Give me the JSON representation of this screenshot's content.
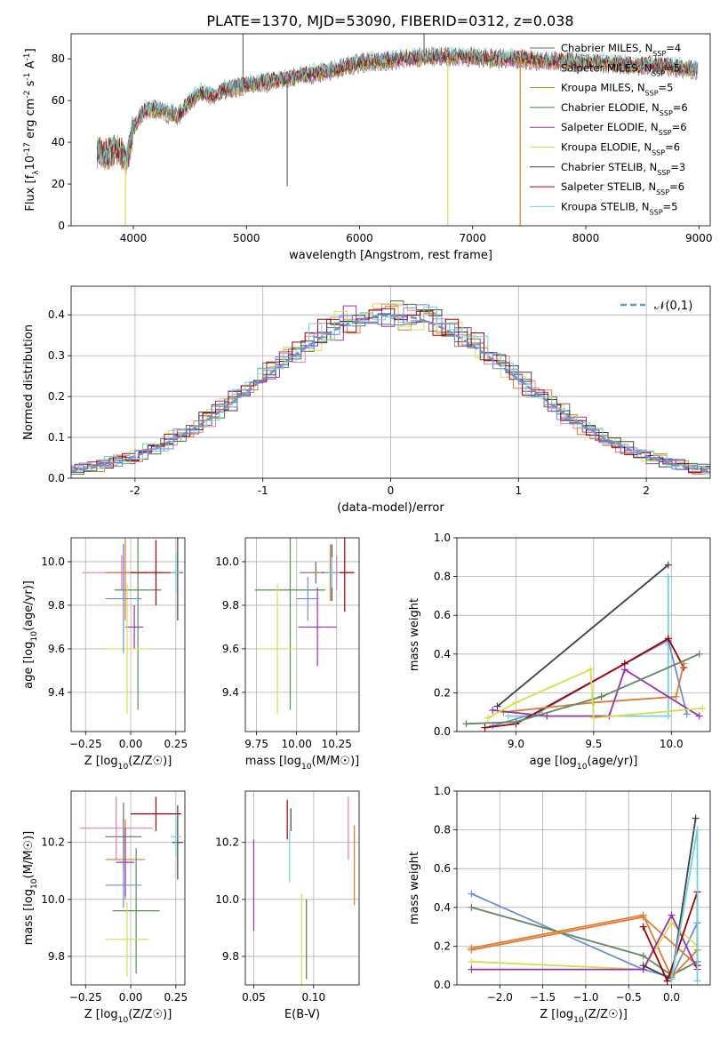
{
  "figure_title": "PLATE=1370, MJD=53090, FIBERID=0312, z=0.038",
  "colors": {
    "Chabrier MILES": "#6a6a6a",
    "Salpeter MILES": "#e879b6",
    "Kroupa MILES": "#b8860b",
    "Chabrier ELODIE": "#3f7f3f",
    "Salpeter ELODIE": "#9b30b0",
    "Kroupa ELODIE": "#d4e04a",
    "Chabrier STELIB": "#404040",
    "Salpeter STELIB": "#a00000",
    "Kroupa STELIB": "#6fd3dd",
    "cornflower": "#6d8fd8",
    "orange": "#e07b30",
    "sage": "#5c8a5c"
  },
  "chart_data": [
    {
      "id": "spectrum",
      "type": "line",
      "xlabel": "wavelength [Angstrom, rest frame]",
      "ylabel": "Flux [f_λ10^-17 erg cm^-2 s^-1 A^-1]",
      "xlim": [
        3450,
        9100
      ],
      "ylim": [
        0,
        92
      ],
      "xticks": [
        4000,
        5000,
        6000,
        7000,
        8000,
        9000
      ],
      "yticks": [
        0,
        20,
        40,
        60,
        80
      ],
      "grid": false,
      "legend_position": "top-right",
      "legend": [
        {
          "label": "Chabrier MILES, N",
          "sub": "SSP",
          "suffix": "=4",
          "color": "#6a6a6a"
        },
        {
          "label": "Salpeter MILES, N",
          "sub": "SSP",
          "suffix": "=5",
          "color": "#e879b6"
        },
        {
          "label": "Kroupa MILES, N",
          "sub": "SSP",
          "suffix": "=5",
          "color": "#b8860b"
        },
        {
          "label": "Chabrier ELODIE, N",
          "sub": "SSP",
          "suffix": "=6",
          "color": "#3f7f3f"
        },
        {
          "label": "Salpeter ELODIE, N",
          "sub": "SSP",
          "suffix": "=6",
          "color": "#9b30b0"
        },
        {
          "label": "Kroupa ELODIE, N",
          "sub": "SSP",
          "suffix": "=6",
          "color": "#d4e04a"
        },
        {
          "label": "Chabrier STELIB, N",
          "sub": "SSP",
          "suffix": "=3",
          "color": "#404040"
        },
        {
          "label": "Salpeter STELIB, N",
          "sub": "SSP",
          "suffix": "=6",
          "color": "#a00000"
        },
        {
          "label": "Kroupa STELIB, N",
          "sub": "SSP",
          "suffix": "=5",
          "color": "#6fd3dd"
        }
      ],
      "continuum": {
        "x": [
          3680,
          3750,
          3850,
          3950,
          4000,
          4100,
          4200,
          4300,
          4400,
          4500,
          4600,
          4700,
          4800,
          4900,
          5000,
          5200,
          5400,
          5600,
          5800,
          6000,
          6200,
          6400,
          6600,
          6800,
          7000,
          7200,
          7400,
          7600,
          7800,
          8000,
          8200,
          8400,
          8600,
          8800,
          8980
        ],
        "y": [
          36,
          34,
          37,
          32,
          47,
          55,
          56,
          54,
          53,
          60,
          64,
          62,
          65,
          66,
          68,
          69,
          71,
          73,
          75,
          78,
          79,
          80,
          81,
          81,
          81,
          80,
          80,
          79,
          79,
          78,
          78,
          77,
          77,
          76,
          75
        ]
      },
      "features": [
        {
          "x": 3930,
          "y": 0,
          "color": "#d4e04a"
        },
        {
          "x": 4970,
          "y": 92,
          "color": "#6a6a6a"
        },
        {
          "x": 5360,
          "y": 19,
          "color": "#6a6a6a"
        },
        {
          "x": 6570,
          "y": 92,
          "color": "#6a6a6a"
        },
        {
          "x": 6780,
          "y": 0,
          "color": "#d4e04a"
        },
        {
          "x": 7420,
          "y": 0,
          "color": "#e07b30"
        }
      ]
    },
    {
      "id": "residuals",
      "type": "histogram",
      "xlabel": "(data-model)/error",
      "ylabel": "Normed distribution",
      "xlim": [
        -2.5,
        2.5
      ],
      "ylim": [
        0,
        0.47
      ],
      "xticks": [
        -2,
        -1,
        0,
        1,
        2
      ],
      "yticks": [
        0.0,
        0.1,
        0.2,
        0.3,
        0.4
      ],
      "grid": true,
      "legend_position": "top-right",
      "legend": [
        {
          "label": "𝒩(0,1)",
          "color": "#6d8fd8"
        }
      ],
      "gaussian": {
        "mean": 0,
        "sigma": 1
      },
      "bin_width": 0.1
    },
    {
      "id": "age-vs-Z",
      "type": "errorbar",
      "xlabel": "Z [log10(Z/Z☉)]",
      "ylabel": "age [log10(age/yr)]",
      "xlim": [
        -0.33,
        0.3
      ],
      "ylim": [
        9.22,
        10.11
      ],
      "xticks": [
        -0.25,
        0.0,
        0.25
      ],
      "xticklabels": [
        "−0.25",
        "0.00",
        "0.25"
      ],
      "yticks": [
        9.4,
        9.6,
        9.8,
        10.0
      ],
      "grid": true,
      "points": [
        {
          "x": -0.04,
          "y": 9.95,
          "xerr": 0.1,
          "yerr": 0.13,
          "color": "#6a6a6a"
        },
        {
          "x": -0.05,
          "y": 9.95,
          "xerr": 0.22,
          "yerr": 0.08,
          "color": "#e879b6"
        },
        {
          "x": -0.03,
          "y": 9.95,
          "xerr": 0.11,
          "yerr": 0.22,
          "color": "#e07b30"
        },
        {
          "x": 0.04,
          "y": 9.87,
          "xerr": 0.13,
          "yerr": 0.55,
          "color": "#5c8a5c"
        },
        {
          "x": 0.02,
          "y": 9.7,
          "xerr": 0.05,
          "yerr": 0.1,
          "color": "#9b30b0"
        },
        {
          "x": -0.02,
          "y": 9.6,
          "xerr": 0.12,
          "yerr": 0.3,
          "color": "#d4e04a"
        },
        {
          "x": 0.26,
          "y": 9.95,
          "xerr": 0.03,
          "yerr": 0.22,
          "color": "#404040"
        },
        {
          "x": 0.14,
          "y": 9.95,
          "xerr": 0.14,
          "yerr": 0.15,
          "color": "#a00000"
        },
        {
          "x": 0.25,
          "y": 9.95,
          "xerr": 0.03,
          "yerr": 0.09,
          "color": "#6fd3dd"
        },
        {
          "x": -0.04,
          "y": 9.83,
          "xerr": 0.1,
          "yerr": 0.25,
          "color": "#6d8fd8"
        }
      ]
    },
    {
      "id": "age-vs-mass",
      "type": "errorbar",
      "xlabel": "mass [log10(M/M☉)]",
      "ylabel": "",
      "xlim": [
        9.68,
        10.39
      ],
      "ylim": [
        9.22,
        10.11
      ],
      "xticks": [
        9.75,
        10.0,
        10.25
      ],
      "xticklabels": [
        "9.75",
        "10.00",
        "10.25"
      ],
      "yticks": [
        9.4,
        9.6,
        9.8,
        10.0
      ],
      "grid": true,
      "points": [
        {
          "x": 9.96,
          "y": 9.87,
          "xerr": 0.22,
          "yerr": 0.55,
          "color": "#5c8a5c"
        },
        {
          "x": 9.88,
          "y": 9.6,
          "xerr": 0.13,
          "yerr": 0.3,
          "color": "#d4e04a"
        },
        {
          "x": 10.13,
          "y": 9.7,
          "xerr": 0.12,
          "yerr": 0.18,
          "color": "#9b30b0"
        },
        {
          "x": 10.12,
          "y": 9.95,
          "xerr": 0.1,
          "yerr": 0.05,
          "color": "#6a6a6a"
        },
        {
          "x": 10.25,
          "y": 9.95,
          "xerr": 0.11,
          "yerr": 0.08,
          "color": "#e879b6"
        },
        {
          "x": 10.21,
          "y": 9.95,
          "xerr": 0.14,
          "yerr": 0.13,
          "color": "#e07b30"
        },
        {
          "x": 10.22,
          "y": 9.95,
          "xerr": 0.06,
          "yerr": 0.13,
          "color": "#404040"
        },
        {
          "x": 10.3,
          "y": 9.95,
          "xerr": 0.06,
          "yerr": 0.18,
          "color": "#a00000"
        },
        {
          "x": 10.22,
          "y": 9.95,
          "xerr": 0.05,
          "yerr": 0.07,
          "color": "#6fd3dd"
        },
        {
          "x": 10.07,
          "y": 9.83,
          "xerr": 0.07,
          "yerr": 0.1,
          "color": "#6d8fd8"
        }
      ]
    },
    {
      "id": "weight-vs-age",
      "type": "line",
      "xlabel": "age [log10(age/yr)]",
      "ylabel": "mass weight",
      "xlim": [
        8.62,
        10.25
      ],
      "ylim": [
        0,
        1.0
      ],
      "xticks": [
        9.0,
        9.5,
        10.0
      ],
      "xticklabels": [
        "9.0",
        "9.5",
        "10.0"
      ],
      "yticks": [
        0.0,
        0.2,
        0.4,
        0.6,
        0.8,
        1.0
      ],
      "grid": true,
      "series": [
        {
          "color": "#404040",
          "x": [
            8.88,
            9.98
          ],
          "y": [
            0.13,
            0.86
          ]
        },
        {
          "color": "#6fd3dd",
          "x": [
            8.95,
            9.98,
            9.98,
            9.98
          ],
          "y": [
            0.08,
            0.08,
            0.45,
            0.8
          ]
        },
        {
          "color": "#6d8fd8",
          "x": [
            8.85,
            9.15,
            9.7,
            9.98,
            10.1
          ],
          "y": [
            0.03,
            0.1,
            0.35,
            0.47,
            0.09
          ]
        },
        {
          "color": "#a00000",
          "x": [
            8.8,
            9.0,
            9.7,
            9.98,
            10.08
          ],
          "y": [
            0.02,
            0.04,
            0.35,
            0.48,
            0.33
          ]
        },
        {
          "color": "#e07b30",
          "x": [
            8.92,
            9.5,
            10.03,
            10.08
          ],
          "y": [
            0.1,
            0.15,
            0.18,
            0.35
          ]
        },
        {
          "color": "#9b30b0",
          "x": [
            8.85,
            9.2,
            9.6,
            9.7,
            10.18
          ],
          "y": [
            0.11,
            0.08,
            0.08,
            0.32,
            0.08
          ]
        },
        {
          "color": "#5c8a5c",
          "x": [
            8.68,
            9.0,
            9.55,
            10.18
          ],
          "y": [
            0.04,
            0.05,
            0.18,
            0.4
          ]
        },
        {
          "color": "#d4e04a",
          "x": [
            8.82,
            9.0,
            9.48,
            9.5,
            10.2
          ],
          "y": [
            0.07,
            0.15,
            0.32,
            0.07,
            0.12
          ]
        }
      ]
    },
    {
      "id": "mass-vs-Z",
      "type": "errorbar",
      "xlabel": "Z [log10(Z/Z☉)]",
      "ylabel": "mass [log10(M/M☉)]",
      "xlim": [
        -0.33,
        0.3
      ],
      "ylim": [
        9.7,
        10.38
      ],
      "xticks": [
        -0.25,
        0.0,
        0.25
      ],
      "xticklabels": [
        "−0.25",
        "0.00",
        "0.25"
      ],
      "yticks": [
        9.8,
        10.0,
        10.2
      ],
      "grid": true,
      "points": [
        {
          "x": -0.04,
          "y": 10.22,
          "xerr": 0.1,
          "yerr": 0.12,
          "color": "#6a6a6a"
        },
        {
          "x": -0.08,
          "y": 10.25,
          "xerr": 0.2,
          "yerr": 0.11,
          "color": "#e879b6"
        },
        {
          "x": -0.03,
          "y": 10.14,
          "xerr": 0.11,
          "yerr": 0.14,
          "color": "#e07b30"
        },
        {
          "x": 0.03,
          "y": 9.96,
          "xerr": 0.13,
          "yerr": 0.22,
          "color": "#5c8a5c"
        },
        {
          "x": -0.03,
          "y": 10.13,
          "xerr": 0.05,
          "yerr": 0.12,
          "color": "#9b30b0"
        },
        {
          "x": -0.02,
          "y": 9.86,
          "xerr": 0.12,
          "yerr": 0.13,
          "color": "#d4e04a"
        },
        {
          "x": 0.26,
          "y": 10.2,
          "xerr": 0.03,
          "yerr": 0.13,
          "color": "#404040"
        },
        {
          "x": 0.14,
          "y": 10.3,
          "xerr": 0.14,
          "yerr": 0.06,
          "color": "#a00000"
        },
        {
          "x": 0.25,
          "y": 10.22,
          "xerr": 0.03,
          "yerr": 0.07,
          "color": "#6fd3dd"
        },
        {
          "x": -0.04,
          "y": 10.05,
          "xerr": 0.1,
          "yerr": 0.08,
          "color": "#6d8fd8"
        }
      ]
    },
    {
      "id": "mass-vs-EBV",
      "type": "errorbar",
      "xlabel": "E(B-V)",
      "ylabel": "",
      "xlim": [
        0.043,
        0.138
      ],
      "ylim": [
        9.7,
        10.38
      ],
      "xticks": [
        0.05,
        0.1
      ],
      "xticklabels": [
        "0.05",
        "0.10"
      ],
      "yticks": [
        9.8,
        10.0,
        10.2
      ],
      "grid": true,
      "points": [
        {
          "x": 0.05,
          "y": 10.05,
          "xerr": 0,
          "yerr": 0.16,
          "color": "#9b30b0"
        },
        {
          "x": 0.078,
          "y": 10.28,
          "xerr": 0,
          "yerr": 0.07,
          "color": "#a00000"
        },
        {
          "x": 0.08,
          "y": 10.15,
          "xerr": 0,
          "yerr": 0.09,
          "color": "#6fd3dd"
        },
        {
          "x": 0.081,
          "y": 10.28,
          "xerr": 0,
          "yerr": 0.04,
          "color": "#404040"
        },
        {
          "x": 0.09,
          "y": 9.86,
          "xerr": 0,
          "yerr": 0.16,
          "color": "#d4e04a"
        },
        {
          "x": 0.094,
          "y": 9.86,
          "xerr": 0,
          "yerr": 0.14,
          "color": "#6a6a6a"
        },
        {
          "x": 0.129,
          "y": 10.25,
          "xerr": 0,
          "yerr": 0.11,
          "color": "#e879b6"
        },
        {
          "x": 0.134,
          "y": 10.12,
          "xerr": 0,
          "yerr": 0.14,
          "color": "#e07b30"
        }
      ]
    },
    {
      "id": "weight-vs-Z",
      "type": "line",
      "xlabel": "Z [log10(Z/Z☉)]",
      "ylabel": "mass weight",
      "xlim": [
        -2.5,
        0.45
      ],
      "ylim": [
        0,
        1.0
      ],
      "xticks": [
        -2.0,
        -1.5,
        -1.0,
        -0.5,
        0.0
      ],
      "xticklabels": [
        "−2.0",
        "−1.5",
        "−1.0",
        "−0.5",
        "0.0"
      ],
      "yticks": [
        0.0,
        0.2,
        0.4,
        0.6,
        0.8,
        1.0
      ],
      "grid": true,
      "series": [
        {
          "color": "#6d8fd8",
          "x": [
            -2.33,
            -0.33,
            0.0,
            0.3
          ],
          "y": [
            0.47,
            0.08,
            0.04,
            0.32
          ]
        },
        {
          "color": "#5c8a5c",
          "x": [
            -2.33,
            -0.33,
            0.0,
            0.3
          ],
          "y": [
            0.4,
            0.15,
            0.05,
            0.12
          ]
        },
        {
          "color": "#e07b30",
          "x": [
            -2.33,
            -0.33,
            0.0,
            0.3
          ],
          "y": [
            0.19,
            0.36,
            0.04,
            0.18
          ]
        },
        {
          "color": "#e07b30",
          "x": [
            -2.33,
            -0.33,
            0.3
          ],
          "y": [
            0.18,
            0.35,
            0.1
          ]
        },
        {
          "color": "#d4e04a",
          "x": [
            -2.33,
            -0.33,
            0.0,
            0.3
          ],
          "y": [
            0.12,
            0.08,
            0.32,
            0.2
          ]
        },
        {
          "color": "#9b30b0",
          "x": [
            -2.33,
            -0.33,
            0.0,
            0.3
          ],
          "y": [
            0.08,
            0.08,
            0.36,
            0.08
          ]
        },
        {
          "color": "#a00000",
          "x": [
            -0.33,
            -0.05,
            0.3,
            0.3
          ],
          "y": [
            0.3,
            0.02,
            0.48,
            0.1
          ]
        },
        {
          "color": "#404040",
          "x": [
            -0.33,
            0.0,
            0.28
          ],
          "y": [
            0.1,
            0.03,
            0.86
          ]
        },
        {
          "color": "#6fd3dd",
          "x": [
            0.0,
            0.3,
            0.3
          ],
          "y": [
            0.03,
            0.8,
            0.02
          ]
        }
      ]
    }
  ]
}
